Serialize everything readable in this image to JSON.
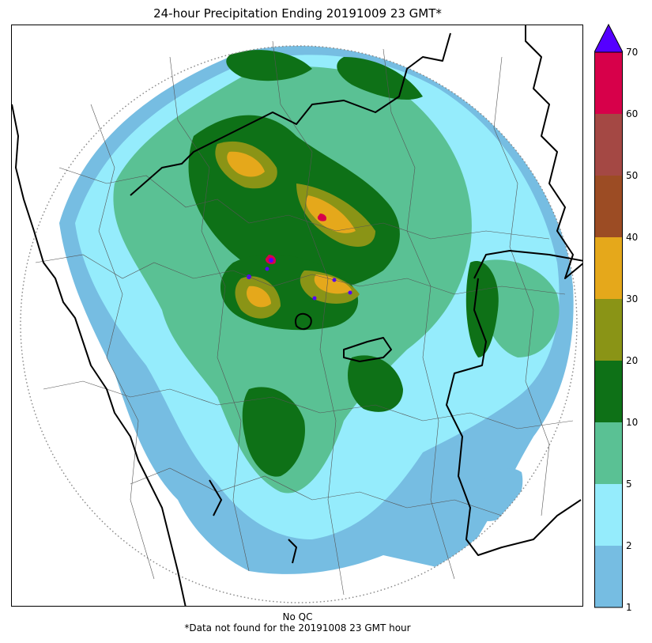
{
  "title": "24-hour Precipitation Ending 20191009 23 GMT*",
  "caption_line1": "No QC",
  "caption_line2": "*Data not found for the 20191008 23 GMT hour",
  "colorbar": {
    "extend": "max",
    "extend_color": "#5500ff",
    "levels": [
      {
        "from": 1,
        "to": 2,
        "color": "#76bde2"
      },
      {
        "from": 2,
        "to": 5,
        "color": "#95ecfc"
      },
      {
        "from": 5,
        "to": 10,
        "color": "#5ac194"
      },
      {
        "from": 10,
        "to": 20,
        "color": "#0e7117"
      },
      {
        "from": 20,
        "to": 30,
        "color": "#8a9416"
      },
      {
        "from": 30,
        "to": 40,
        "color": "#e5a81b"
      },
      {
        "from": 40,
        "to": 50,
        "color": "#9c4c24"
      },
      {
        "from": 50,
        "to": 60,
        "color": "#a44844"
      },
      {
        "from": 60,
        "to": 70,
        "color": "#d7004a"
      }
    ],
    "tick_labels": [
      "1",
      "2",
      "5",
      "10",
      "20",
      "30",
      "40",
      "50",
      "60",
      "70"
    ]
  }
}
